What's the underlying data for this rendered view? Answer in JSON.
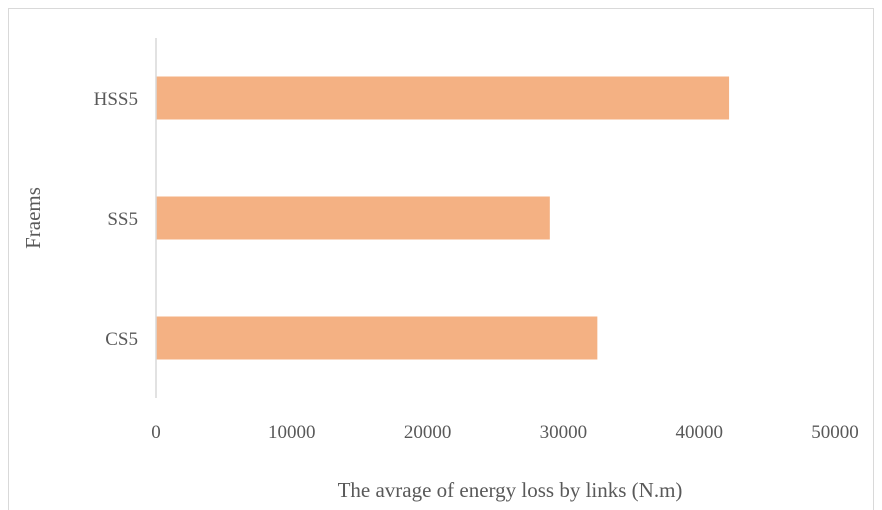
{
  "chart_data": {
    "type": "bar",
    "orientation": "horizontal",
    "categories": [
      "HSS5",
      "SS5",
      "CS5"
    ],
    "values": [
      42200,
      29000,
      32500
    ],
    "xlabel": "The avrage of energy loss by links (N.m)",
    "ylabel": "Fraems",
    "xlim": [
      0,
      50000
    ],
    "xticks": [
      "0",
      "10000",
      "20000",
      "30000",
      "40000",
      "50000"
    ],
    "grid": false,
    "bar_color": "#f4b183",
    "axis_color": "#d9d9d9"
  }
}
